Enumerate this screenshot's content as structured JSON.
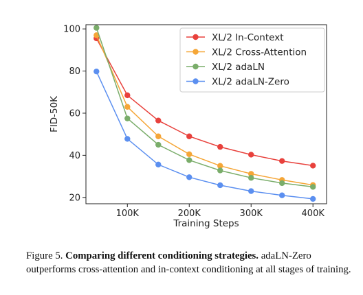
{
  "chart_data": {
    "type": "line",
    "xlabel": "Training Steps",
    "ylabel": "FID-50K",
    "x": [
      50000,
      100000,
      150000,
      200000,
      250000,
      300000,
      350000,
      400000
    ],
    "xlim": [
      33000,
      422000
    ],
    "ylim": [
      17,
      102
    ],
    "x_ticks": [
      {
        "value": 100000,
        "label": "100K"
      },
      {
        "value": 200000,
        "label": "200K"
      },
      {
        "value": 300000,
        "label": "300K"
      },
      {
        "value": 400000,
        "label": "400K"
      }
    ],
    "y_ticks": [
      {
        "value": 20,
        "label": "20"
      },
      {
        "value": 40,
        "label": "40"
      },
      {
        "value": 60,
        "label": "60"
      },
      {
        "value": 80,
        "label": "80"
      },
      {
        "value": 100,
        "label": "100"
      }
    ],
    "grid": false,
    "legend": "top-right",
    "series": [
      {
        "name": "XL/2 In-Context",
        "color": "#e8413c",
        "values": [
          95.5,
          68.5,
          56.5,
          49.0,
          44.0,
          40.3,
          37.3,
          35.1
        ]
      },
      {
        "name": "XL/2 Cross-Attention",
        "color": "#f5a637",
        "values": [
          97.0,
          63.0,
          49.0,
          40.5,
          35.0,
          31.2,
          28.3,
          25.9
        ]
      },
      {
        "name": "XL/2 adaLN",
        "color": "#7aad6a",
        "values": [
          100.5,
          57.5,
          45.0,
          37.7,
          32.8,
          29.3,
          26.8,
          25.0
        ]
      },
      {
        "name": "XL/2 adaLN-Zero",
        "color": "#5b8ff0",
        "values": [
          79.8,
          47.8,
          35.6,
          29.6,
          25.8,
          23.0,
          21.0,
          19.3
        ]
      }
    ]
  },
  "caption": {
    "figure_label": "Figure 5.",
    "title": "Comparing different conditioning strategies.",
    "body": "adaLN-Zero outperforms cross-attention and in-context conditioning at all stages of training."
  }
}
